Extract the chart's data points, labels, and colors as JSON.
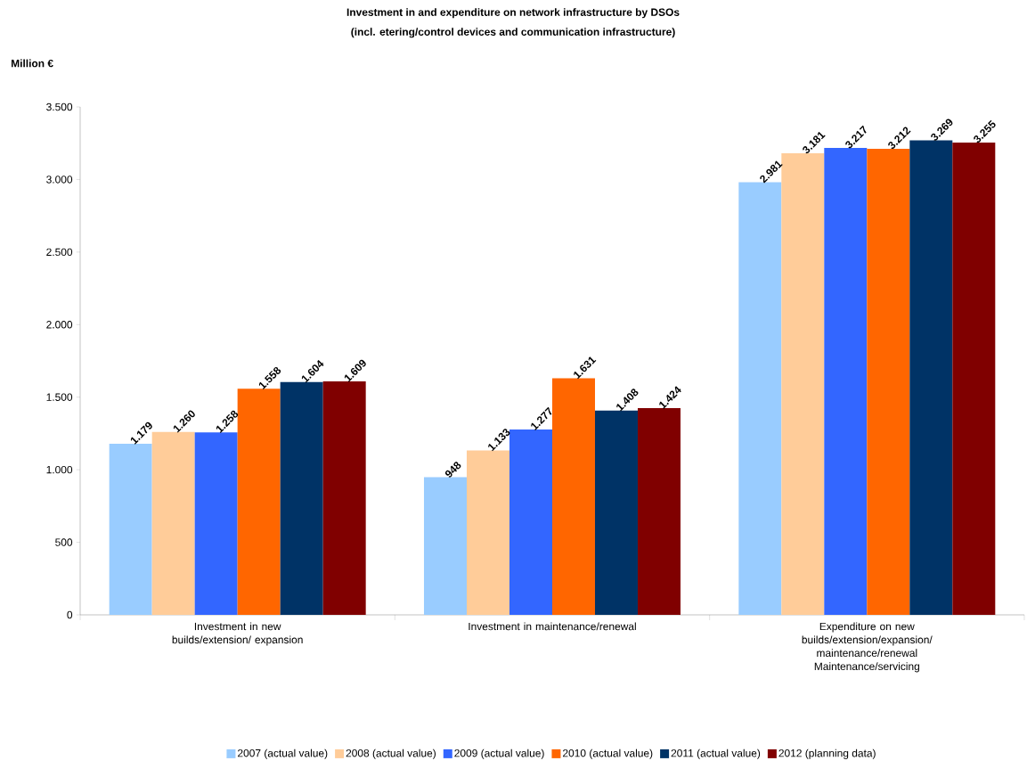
{
  "chart_data": {
    "type": "bar",
    "title": "Investment in and expenditure on network infrastructure by DSOs",
    "subtitle": "(incl. etering/control devices and communication infrastructure)",
    "ylabel": "Million €",
    "categories": [
      "Investment in new builds/extension/ expansion",
      "Investment in maintenance/renewal",
      "Expenditure on new builds/extension/expansion/ maintenance/renewal Maintenance/servicing"
    ],
    "series": [
      {
        "name": "2007 (actual value)",
        "color": "#99ccff",
        "values": [
          1179,
          948,
          2981
        ],
        "value_labels": [
          "1.179",
          "948",
          "2.981"
        ]
      },
      {
        "name": "2008 (actual value)",
        "color": "#ffcc99",
        "values": [
          1260,
          1133,
          3181
        ],
        "value_labels": [
          "1.260",
          "1.133",
          "3.181"
        ]
      },
      {
        "name": "2009 (actual value)",
        "color": "#3366ff",
        "values": [
          1258,
          1277,
          3217
        ],
        "value_labels": [
          "1.258",
          "1.277",
          "3.217"
        ]
      },
      {
        "name": "2010 (actual value)",
        "color": "#ff6600",
        "values": [
          1558,
          1631,
          3212
        ],
        "value_labels": [
          "1.558",
          "1.631",
          "3.212"
        ]
      },
      {
        "name": "2011 (actual value)",
        "color": "#003366",
        "values": [
          1604,
          1408,
          3269
        ],
        "value_labels": [
          "1.604",
          "1.408",
          "3.269"
        ]
      },
      {
        "name": "2012 (planning data)",
        "color": "#800000",
        "values": [
          1609,
          1424,
          3255
        ],
        "value_labels": [
          "1.609",
          "1.424",
          "3.255"
        ]
      }
    ],
    "ylim": [
      0,
      3500
    ],
    "yticks": [
      {
        "value": 0,
        "label": "0"
      },
      {
        "value": 500,
        "label": "500"
      },
      {
        "value": 1000,
        "label": "1.000"
      },
      {
        "value": 1500,
        "label": "1.500"
      },
      {
        "value": 2000,
        "label": "2.000"
      },
      {
        "value": 2500,
        "label": "2.500"
      },
      {
        "value": 3000,
        "label": "3.000"
      },
      {
        "value": 3500,
        "label": "3.500"
      }
    ],
    "legend": "bottom",
    "grid": false
  }
}
